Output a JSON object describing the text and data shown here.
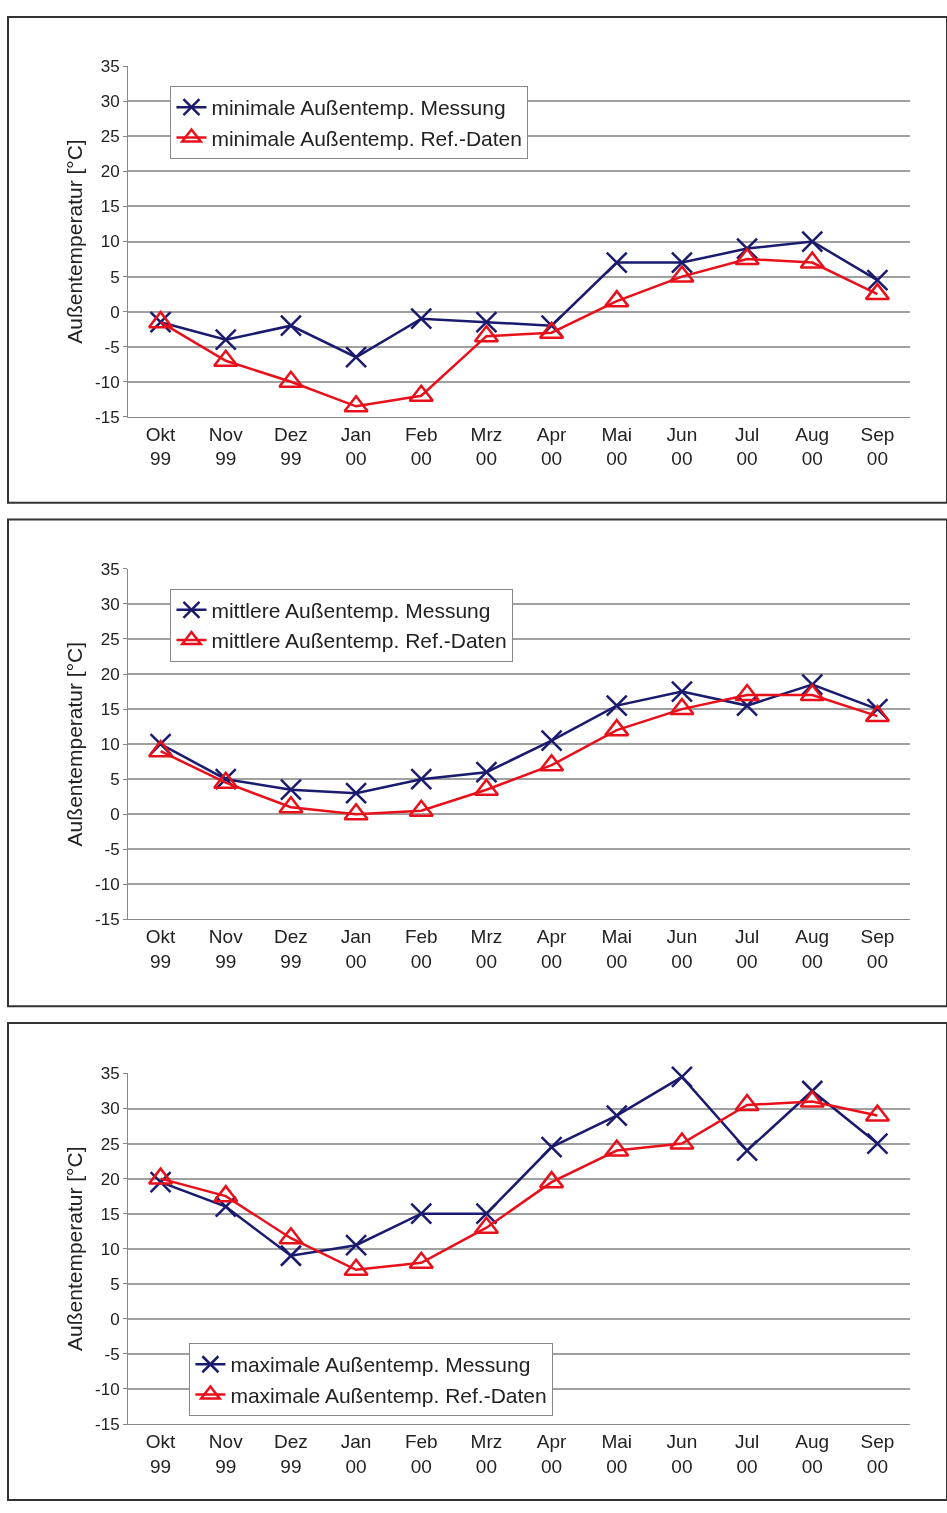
{
  "chart_data": [
    {
      "type": "line",
      "ylabel": "Außentemperatur [°C]",
      "categories": [
        "Okt\n99",
        "Nov\n99",
        "Dez\n99",
        "Jan\n00",
        "Feb\n00",
        "Mrz\n00",
        "Apr\n00",
        "Mai\n00",
        "Jun\n00",
        "Jul\n00",
        "Aug\n00",
        "Sep\n00"
      ],
      "ylim": [
        -15,
        35
      ],
      "yticks": [
        -15,
        -10,
        -5,
        0,
        5,
        10,
        15,
        20,
        25,
        30,
        35
      ],
      "grid": "y",
      "legend": "top left",
      "series": [
        {
          "name": "minimale Außentemp. Messung",
          "color": "#1a1a6e",
          "marker": "cross",
          "values": [
            -1.5,
            -4,
            -2,
            -6.5,
            -1,
            -1.5,
            -2,
            7,
            7,
            9,
            10,
            4.5
          ]
        },
        {
          "name": "minimale Außentemp. Ref.-Daten",
          "color": "#e8101a",
          "marker": "triangle",
          "values": [
            -1.5,
            -7,
            -10,
            -13.5,
            -12,
            -3.5,
            -3,
            1.5,
            5,
            7.5,
            7,
            2.5
          ]
        }
      ]
    },
    {
      "type": "line",
      "ylabel": "Außentemperatur [°C]",
      "categories": [
        "Okt\n99",
        "Nov\n99",
        "Dez\n99",
        "Jan\n00",
        "Feb\n00",
        "Mrz\n00",
        "Apr\n00",
        "Mai\n00",
        "Jun\n00",
        "Jul\n00",
        "Aug\n00",
        "Sep\n00"
      ],
      "ylim": [
        -15,
        35
      ],
      "yticks": [
        -15,
        -10,
        -5,
        0,
        5,
        10,
        15,
        20,
        25,
        30,
        35
      ],
      "grid": "y",
      "legend": "top left",
      "series": [
        {
          "name": "mittlere Außentemp. Messung",
          "color": "#1a1a6e",
          "marker": "cross",
          "values": [
            10,
            5,
            3.5,
            3,
            5,
            6,
            10.5,
            15.5,
            17.5,
            15.5,
            18.5,
            15
          ]
        },
        {
          "name": "mittlere Außentemp. Ref.-Daten",
          "color": "#e8101a",
          "marker": "triangle",
          "values": [
            9,
            4.5,
            1,
            0,
            0.5,
            3.5,
            7,
            12,
            15,
            17,
            17,
            14
          ]
        }
      ]
    },
    {
      "type": "line",
      "ylabel": "Außentemperatur [°C]",
      "categories": [
        "Okt\n99",
        "Nov\n99",
        "Dez\n99",
        "Jan\n00",
        "Feb\n00",
        "Mrz\n00",
        "Apr\n00",
        "Mai\n00",
        "Jun\n00",
        "Jul\n00",
        "Aug\n00",
        "Sep\n00"
      ],
      "ylim": [
        -15,
        35
      ],
      "yticks": [
        -15,
        -10,
        -5,
        0,
        5,
        10,
        15,
        20,
        25,
        30,
        35
      ],
      "grid": "y",
      "legend": "bottom",
      "series": [
        {
          "name": "maximale Außentemp. Messung",
          "color": "#1a1a6e",
          "marker": "cross",
          "values": [
            19.5,
            16,
            9,
            10.5,
            15,
            15,
            24.5,
            29,
            34.5,
            24,
            32.5,
            25
          ]
        },
        {
          "name": "maximale Außentemp. Ref.-Daten",
          "color": "#e8101a",
          "marker": "triangle",
          "values": [
            20,
            17.5,
            11.5,
            7,
            8,
            13,
            19.5,
            24,
            25,
            30.5,
            31,
            29
          ]
        }
      ]
    }
  ]
}
